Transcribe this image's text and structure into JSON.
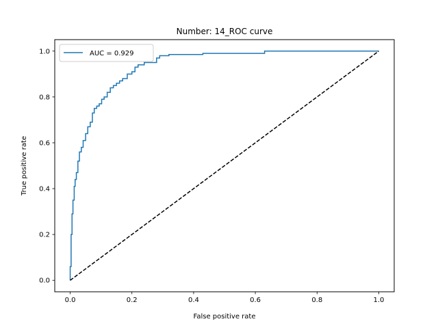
{
  "chart_data": {
    "type": "line",
    "title": "Number: 14_ROC curve",
    "xlabel": "False positive rate",
    "ylabel": "True positive rate",
    "xlim": [
      -0.05,
      1.05
    ],
    "ylim": [
      -0.05,
      1.05
    ],
    "xticks": [
      0.0,
      0.2,
      0.4,
      0.6,
      0.8,
      1.0
    ],
    "yticks": [
      0.0,
      0.2,
      0.4,
      0.6,
      0.8,
      1.0
    ],
    "xtick_labels": [
      "0.0",
      "0.2",
      "0.4",
      "0.6",
      "0.8",
      "1.0"
    ],
    "ytick_labels": [
      "0.0",
      "0.2",
      "0.4",
      "0.6",
      "0.8",
      "1.0"
    ],
    "grid": false,
    "legend_position": "top-left",
    "series": [
      {
        "name": "AUC = 0.929",
        "color": "#1f77b4",
        "style": "solid",
        "x": [
          0.0,
          0.0,
          0.003,
          0.003,
          0.006,
          0.006,
          0.009,
          0.009,
          0.013,
          0.013,
          0.016,
          0.016,
          0.02,
          0.02,
          0.025,
          0.025,
          0.03,
          0.03,
          0.036,
          0.036,
          0.042,
          0.042,
          0.05,
          0.05,
          0.057,
          0.057,
          0.065,
          0.065,
          0.072,
          0.072,
          0.078,
          0.078,
          0.086,
          0.086,
          0.094,
          0.094,
          0.102,
          0.102,
          0.11,
          0.11,
          0.12,
          0.12,
          0.13,
          0.13,
          0.14,
          0.14,
          0.15,
          0.15,
          0.16,
          0.16,
          0.17,
          0.17,
          0.185,
          0.185,
          0.2,
          0.2,
          0.21,
          0.21,
          0.22,
          0.22,
          0.24,
          0.24,
          0.28,
          0.28,
          0.29,
          0.29,
          0.32,
          0.32,
          0.43,
          0.43,
          0.63,
          0.63,
          1.0
        ],
        "y": [
          0.0,
          0.06,
          0.06,
          0.2,
          0.2,
          0.29,
          0.29,
          0.35,
          0.35,
          0.41,
          0.41,
          0.44,
          0.44,
          0.47,
          0.47,
          0.52,
          0.52,
          0.56,
          0.56,
          0.58,
          0.58,
          0.61,
          0.61,
          0.64,
          0.64,
          0.67,
          0.67,
          0.69,
          0.69,
          0.73,
          0.73,
          0.75,
          0.75,
          0.76,
          0.76,
          0.77,
          0.77,
          0.79,
          0.79,
          0.8,
          0.8,
          0.82,
          0.82,
          0.84,
          0.84,
          0.85,
          0.85,
          0.86,
          0.86,
          0.87,
          0.87,
          0.88,
          0.88,
          0.9,
          0.9,
          0.91,
          0.91,
          0.93,
          0.93,
          0.94,
          0.94,
          0.95,
          0.95,
          0.97,
          0.97,
          0.98,
          0.98,
          0.985,
          0.985,
          0.99,
          0.99,
          1.0,
          1.0
        ]
      },
      {
        "name": "",
        "color": "#000000",
        "style": "dashed",
        "x": [
          0.0,
          1.0
        ],
        "y": [
          0.0,
          1.0
        ]
      }
    ]
  }
}
